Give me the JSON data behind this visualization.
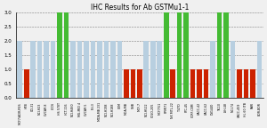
{
  "title": "IHC Results for Ab GSTMu1-1",
  "ylim": [
    0,
    3.0
  ],
  "yticks": [
    0.0,
    0.5,
    1.0,
    1.5,
    2.0,
    2.5,
    3.0
  ],
  "score_color_map": {
    "0": "#b8cfe0",
    "1": "#cc2200",
    "2": "#b8cfe0",
    "3": "#44bb33"
  },
  "cell_lines": [
    [
      "MCF7/ADR-RES",
      2
    ],
    [
      "HTB",
      1
    ],
    [
      "UO-31",
      2
    ],
    [
      "NCI-H23",
      2
    ],
    [
      "OVCAR-8",
      2
    ],
    [
      "LCC6",
      2
    ],
    [
      "HS 578T",
      3
    ],
    [
      "HCT-116",
      3
    ],
    [
      "NCI-H460",
      2
    ],
    [
      "MG-MID 4",
      2
    ],
    [
      "OVCAR-5",
      2
    ],
    [
      "Pcl-3",
      2
    ],
    [
      "MDA-MB 231",
      2
    ],
    [
      "NCI-H198",
      2
    ],
    [
      "NCI-H188",
      2
    ],
    [
      "CEM",
      2
    ],
    [
      "MDA-MB",
      1
    ],
    [
      "SNB",
      1
    ],
    [
      "MCF-7",
      1
    ],
    [
      "NCI-H522",
      2
    ],
    [
      "COLO-205",
      2
    ],
    [
      "MCF7/51",
      2
    ],
    [
      "RPMI71",
      3
    ],
    [
      "NX MTL-22",
      1
    ],
    [
      "T-47D",
      3
    ],
    [
      "FTC-45",
      3
    ],
    [
      "CCRF-CEM",
      1
    ],
    [
      "UACC-42",
      1
    ],
    [
      "UACC-62",
      1
    ],
    [
      "DU1440",
      2
    ],
    [
      "TK-10",
      3
    ],
    [
      "ISH-48",
      3
    ],
    [
      "NCI-74",
      2
    ],
    [
      "UACC-459",
      1
    ],
    [
      "HL 60 ITB",
      1
    ],
    [
      "PARI",
      1
    ],
    [
      "BOR-BOR",
      2
    ]
  ],
  "bg_color": "#f0f0f0",
  "title_fontsize": 5.5,
  "xlabel_fontsize": 2.3,
  "ylabel_fontsize": 4.0
}
